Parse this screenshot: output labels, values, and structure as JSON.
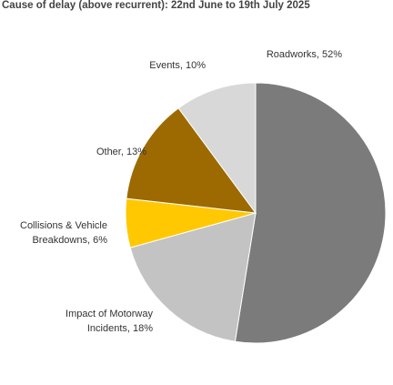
{
  "chart_data": {
    "type": "pie",
    "title": "Cause of delay (above recurrent): 22nd June to 19th July 2025",
    "categories": [
      "Roadworks",
      "Impact of Motorway Incidents",
      "Collisions & Vehicle Breakdowns",
      "Other",
      "Events"
    ],
    "values": [
      52,
      18,
      6,
      13,
      10
    ],
    "value_labels": [
      "Roadworks, 52%",
      "Impact of Motorway Incidents, 18%",
      "Collisions & Vehicle Breakdowns, 6%",
      "Other, 13%",
      "Events, 10%"
    ],
    "colors": [
      "#7b7b7b",
      "#c3c3c3",
      "#ffc800",
      "#9c6a00",
      "#d8d8d8"
    ]
  }
}
